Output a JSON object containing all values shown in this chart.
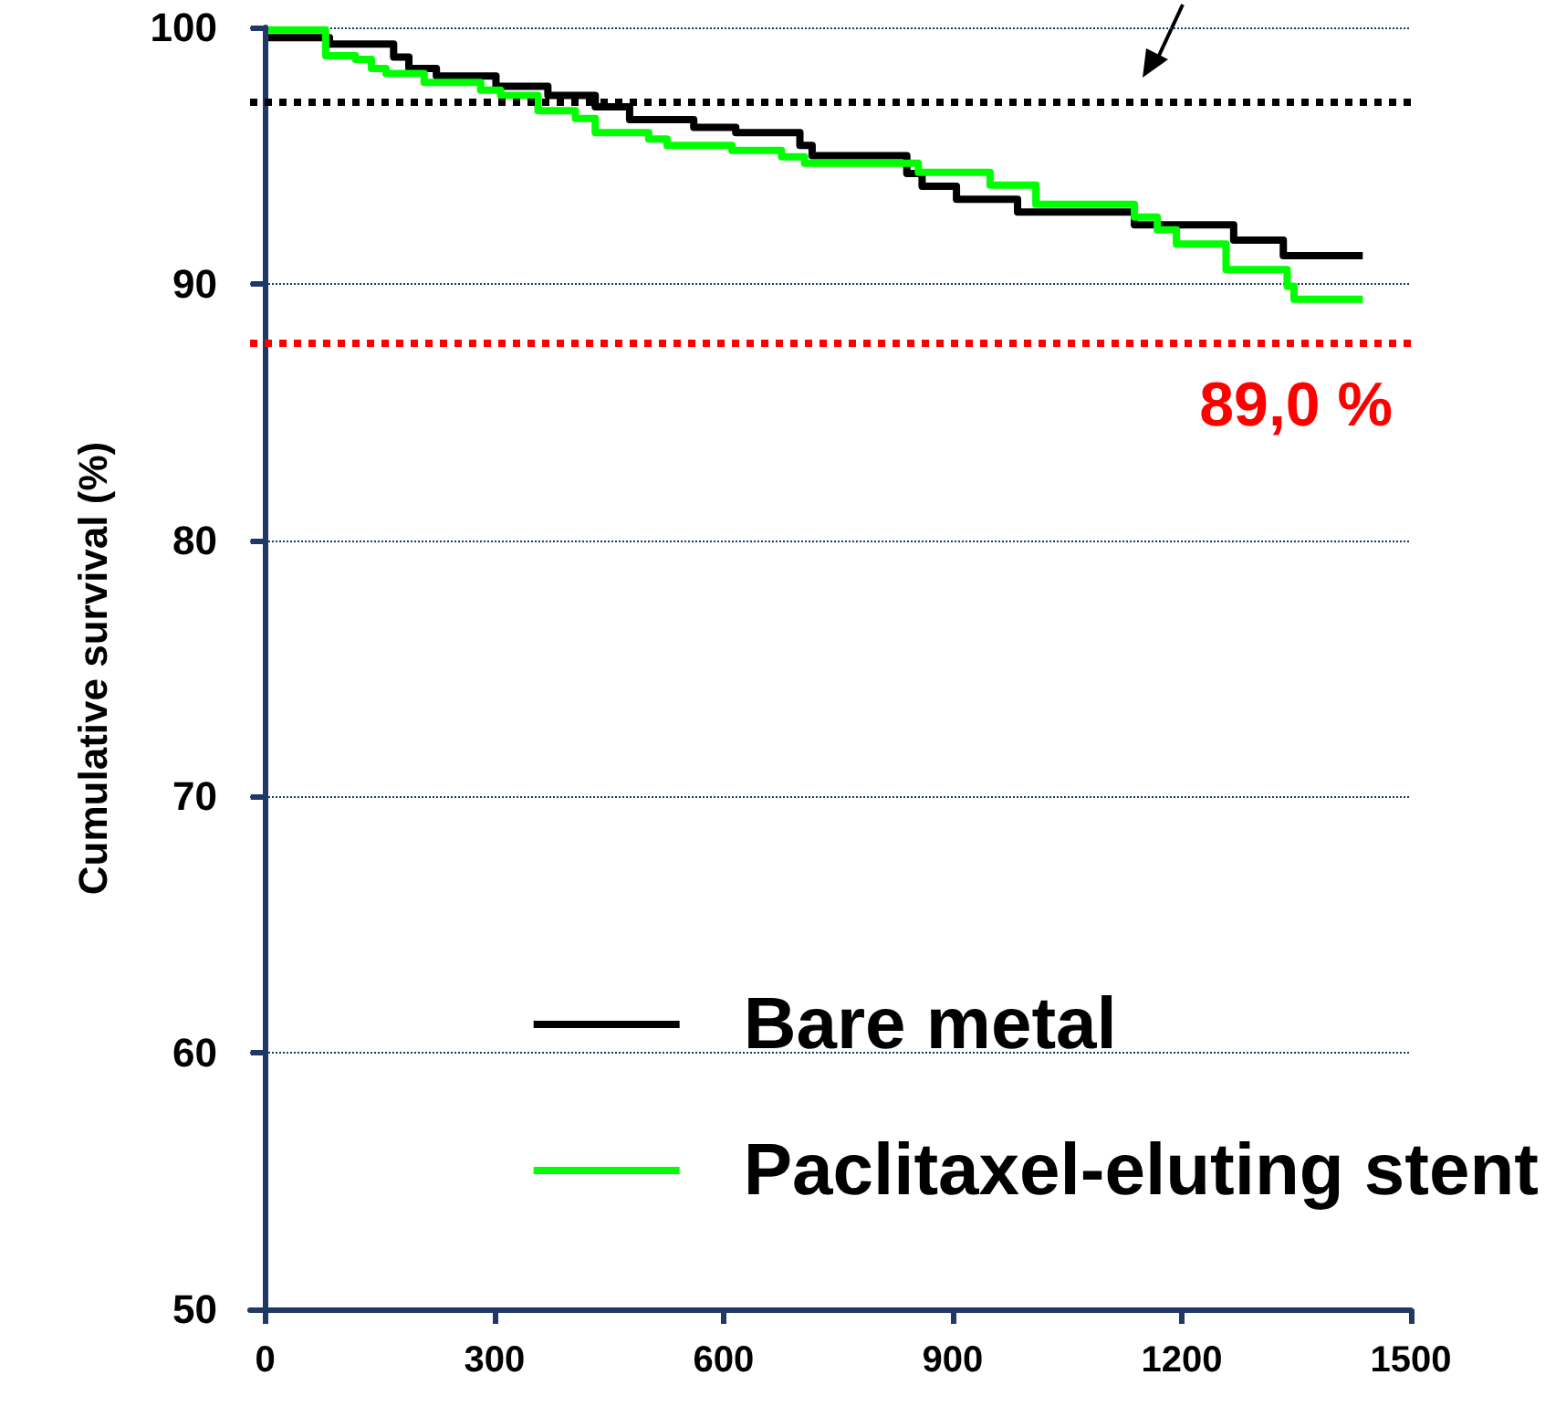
{
  "chart_data": {
    "type": "step",
    "ylabel": "Cumulative survival (%)",
    "xlim": [
      -20,
      1500
    ],
    "xticks": [
      0,
      300,
      600,
      900,
      1200,
      1500
    ],
    "ylim": [
      50,
      100
    ],
    "yticks": [
      50,
      60,
      70,
      80,
      90,
      100
    ],
    "grid": "y",
    "legend": "bottom right",
    "line_style": "solid",
    "marker": "none",
    "series": [
      {
        "name": "Bare metal",
        "color": "#000000",
        "x": [
          4,
          84,
          168,
          188,
          224,
          302,
          370,
          432,
          477,
          561,
          616,
          700,
          716,
          840,
          860,
          905,
          985,
          1138,
          1268,
          1333,
          1437
        ],
        "values": [
          99.6,
          99.35,
          98.84,
          98.4,
          98.1,
          97.7,
          97.35,
          96.9,
          96.4,
          96.1,
          95.9,
          95.4,
          95.0,
          94.3,
          93.8,
          93.3,
          92.8,
          92.3,
          91.7,
          91.1,
          91.1
        ]
      },
      {
        "name": "Paclitaxel-eluting stent",
        "color": "#00ff00",
        "x": [
          4,
          79,
          118,
          139,
          158,
          208,
          282,
          308,
          357,
          406,
          432,
          502,
          526,
          611,
          676,
          706,
          855,
          949,
          1009,
          1138,
          1168,
          1193,
          1258,
          1338,
          1347,
          1437
        ],
        "values": [
          99.9,
          98.9,
          98.75,
          98.4,
          98.2,
          97.85,
          97.55,
          97.35,
          96.75,
          96.45,
          95.9,
          95.65,
          95.4,
          95.2,
          94.95,
          94.7,
          94.35,
          93.85,
          93.1,
          92.6,
          92.1,
          91.55,
          90.55,
          89.9,
          89.4,
          89.4
        ]
      }
    ],
    "ref_lines": [
      {
        "axis": "y",
        "value": 97.1,
        "label": null,
        "color": "#000000",
        "line_style": "dotted"
      },
      {
        "axis": "y",
        "value": 87.7,
        "label": null,
        "color": "#ff0000",
        "line_style": "dotted"
      }
    ],
    "annotations": [
      "89,0 %"
    ]
  }
}
